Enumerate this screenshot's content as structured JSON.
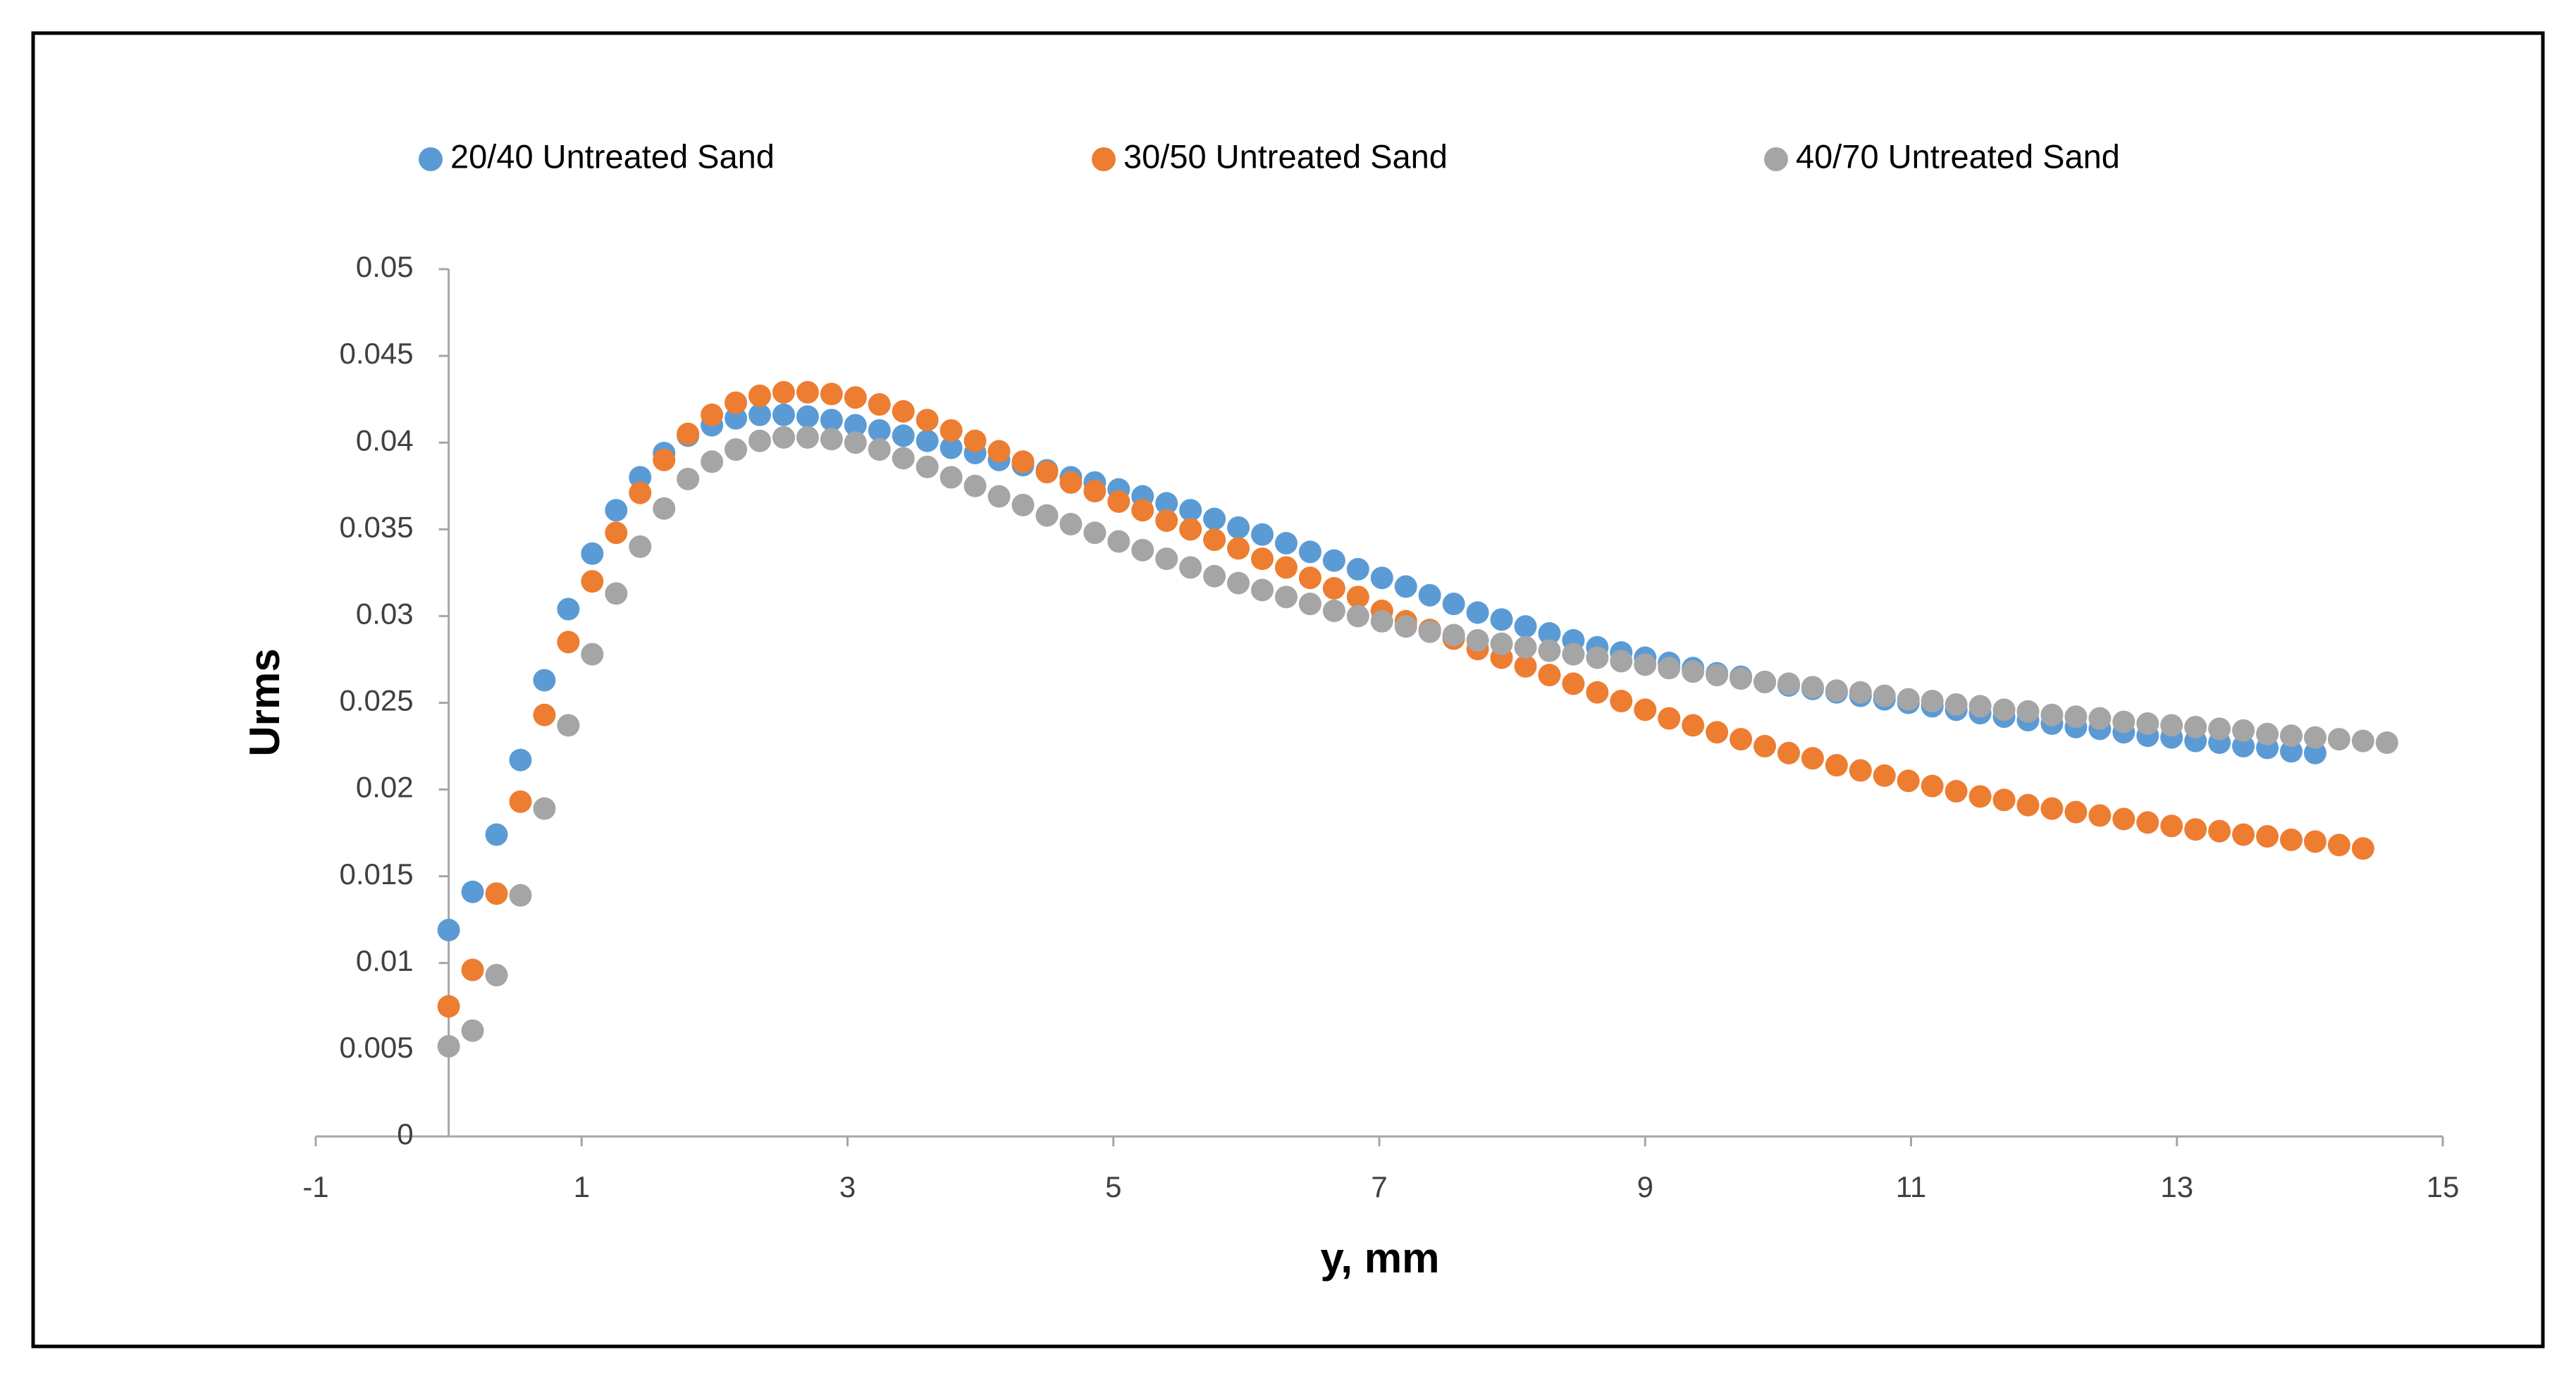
{
  "chart_data": {
    "type": "scatter",
    "x_label": "y, mm",
    "y_label": "Urms",
    "xlim": [
      -1,
      15
    ],
    "xticks": [
      -1,
      1,
      3,
      5,
      7,
      9,
      11,
      13,
      15
    ],
    "ylim": [
      0,
      0.05
    ],
    "yticks": [
      0,
      0.005,
      0.01,
      0.015,
      0.02,
      0.025,
      0.03,
      0.035,
      0.04,
      0.045,
      0.05
    ],
    "grid": false,
    "legend": "top",
    "series": [
      {
        "name": "20/40 Untreated Sand",
        "color": "#5b9bd5",
        "x": [
          0,
          0.18,
          0.36,
          0.54,
          0.72,
          0.9,
          1.08,
          1.26,
          1.44,
          1.62,
          1.8,
          1.98,
          2.16,
          2.34,
          2.52,
          2.7,
          2.88,
          3.06,
          3.24,
          3.42,
          3.6,
          3.78,
          3.96,
          4.14,
          4.32,
          4.5,
          4.68,
          4.86,
          5.04,
          5.22,
          5.4,
          5.58,
          5.76,
          5.94,
          6.12,
          6.3,
          6.48,
          6.66,
          6.84,
          7.02,
          7.2,
          7.38,
          7.56,
          7.74,
          7.92,
          8.1,
          8.28,
          8.46,
          8.64,
          8.82,
          9,
          9.18,
          9.36,
          9.54,
          9.72,
          9.9,
          10.08,
          10.26,
          10.44,
          10.62,
          10.8,
          10.98,
          11.16,
          11.34,
          11.52,
          11.7,
          11.88,
          12.06,
          12.24,
          12.42,
          12.6,
          12.78,
          12.96,
          13.14,
          13.32,
          13.5,
          13.68,
          13.86,
          14.04
        ],
        "values": [
          0.0119,
          0.0141,
          0.0174,
          0.0217,
          0.0263,
          0.0304,
          0.0336,
          0.0361,
          0.038,
          0.0394,
          0.0404,
          0.041,
          0.0414,
          0.0416,
          0.0416,
          0.0415,
          0.0413,
          0.041,
          0.0407,
          0.0404,
          0.0401,
          0.0397,
          0.0394,
          0.039,
          0.0387,
          0.0384,
          0.038,
          0.0377,
          0.0373,
          0.0369,
          0.0365,
          0.0361,
          0.0356,
          0.0351,
          0.0347,
          0.0342,
          0.0337,
          0.0332,
          0.0327,
          0.0322,
          0.0317,
          0.0312,
          0.0307,
          0.0302,
          0.0298,
          0.0294,
          0.029,
          0.0286,
          0.0282,
          0.0279,
          0.0276,
          0.0273,
          0.027,
          0.0267,
          0.0265,
          0.0262,
          0.026,
          0.0258,
          0.0256,
          0.0254,
          0.0252,
          0.025,
          0.0248,
          0.0246,
          0.0244,
          0.0242,
          0.024,
          0.0238,
          0.0236,
          0.0235,
          0.0233,
          0.0231,
          0.023,
          0.0228,
          0.0227,
          0.0225,
          0.0224,
          0.0222,
          0.0221
        ]
      },
      {
        "name": "30/50 Untreated Sand",
        "color": "#ed7d31",
        "x": [
          0,
          0.18,
          0.36,
          0.54,
          0.72,
          0.9,
          1.08,
          1.26,
          1.44,
          1.62,
          1.8,
          1.98,
          2.16,
          2.34,
          2.52,
          2.7,
          2.88,
          3.06,
          3.24,
          3.42,
          3.6,
          3.78,
          3.96,
          4.14,
          4.32,
          4.5,
          4.68,
          4.86,
          5.04,
          5.22,
          5.4,
          5.58,
          5.76,
          5.94,
          6.12,
          6.3,
          6.48,
          6.66,
          6.84,
          7.02,
          7.2,
          7.38,
          7.56,
          7.74,
          7.92,
          8.1,
          8.28,
          8.46,
          8.64,
          8.82,
          9,
          9.18,
          9.36,
          9.54,
          9.72,
          9.9,
          10.08,
          10.26,
          10.44,
          10.62,
          10.8,
          10.98,
          11.16,
          11.34,
          11.52,
          11.7,
          11.88,
          12.06,
          12.24,
          12.42,
          12.6,
          12.78,
          12.96,
          13.14,
          13.32,
          13.5,
          13.68,
          13.86,
          14.04,
          14.22,
          14.4
        ],
        "values": [
          0.0075,
          0.0096,
          0.014,
          0.0193,
          0.0243,
          0.0285,
          0.032,
          0.0348,
          0.0371,
          0.039,
          0.0405,
          0.0416,
          0.0423,
          0.0427,
          0.0429,
          0.0429,
          0.0428,
          0.0426,
          0.0422,
          0.0418,
          0.0413,
          0.0407,
          0.0401,
          0.0395,
          0.0389,
          0.0383,
          0.0377,
          0.0372,
          0.0366,
          0.0361,
          0.0355,
          0.035,
          0.0344,
          0.0339,
          0.0333,
          0.0328,
          0.0322,
          0.0316,
          0.0311,
          0.0303,
          0.0297,
          0.0292,
          0.0287,
          0.0281,
          0.0276,
          0.0271,
          0.0266,
          0.0261,
          0.0256,
          0.0251,
          0.0246,
          0.0241,
          0.0237,
          0.0233,
          0.0229,
          0.0225,
          0.0221,
          0.0218,
          0.0214,
          0.0211,
          0.0208,
          0.0205,
          0.0202,
          0.0199,
          0.0196,
          0.0194,
          0.0191,
          0.0189,
          0.0187,
          0.0185,
          0.0183,
          0.0181,
          0.0179,
          0.0177,
          0.0176,
          0.0174,
          0.0173,
          0.0171,
          0.017,
          0.0168,
          0.0166
        ]
      },
      {
        "name": "40/70 Untreated Sand",
        "color": "#a5a5a5",
        "x": [
          0,
          0.18,
          0.36,
          0.54,
          0.72,
          0.9,
          1.08,
          1.26,
          1.44,
          1.62,
          1.8,
          1.98,
          2.16,
          2.34,
          2.52,
          2.7,
          2.88,
          3.06,
          3.24,
          3.42,
          3.6,
          3.78,
          3.96,
          4.14,
          4.32,
          4.5,
          4.68,
          4.86,
          5.04,
          5.22,
          5.4,
          5.58,
          5.76,
          5.94,
          6.12,
          6.3,
          6.48,
          6.66,
          6.84,
          7.02,
          7.2,
          7.38,
          7.56,
          7.74,
          7.92,
          8.1,
          8.28,
          8.46,
          8.64,
          8.82,
          9,
          9.18,
          9.36,
          9.54,
          9.72,
          9.9,
          10.08,
          10.26,
          10.44,
          10.62,
          10.8,
          10.98,
          11.16,
          11.34,
          11.52,
          11.7,
          11.88,
          12.06,
          12.24,
          12.42,
          12.6,
          12.78,
          12.96,
          13.14,
          13.32,
          13.5,
          13.68,
          13.86,
          14.04,
          14.22,
          14.4,
          14.58
        ],
        "values": [
          0.0052,
          0.0061,
          0.0093,
          0.0139,
          0.0189,
          0.0237,
          0.0278,
          0.0313,
          0.034,
          0.0362,
          0.0379,
          0.0389,
          0.0396,
          0.0401,
          0.0403,
          0.0403,
          0.0402,
          0.04,
          0.0396,
          0.0391,
          0.0386,
          0.038,
          0.0375,
          0.0369,
          0.0364,
          0.0358,
          0.0353,
          0.0348,
          0.0343,
          0.0338,
          0.0333,
          0.0328,
          0.0323,
          0.0319,
          0.0315,
          0.0311,
          0.0307,
          0.0303,
          0.03,
          0.0297,
          0.0294,
          0.0291,
          0.0289,
          0.0286,
          0.0284,
          0.0282,
          0.028,
          0.0278,
          0.0276,
          0.0274,
          0.0272,
          0.027,
          0.0268,
          0.0266,
          0.0264,
          0.0262,
          0.0261,
          0.0259,
          0.0257,
          0.0256,
          0.0254,
          0.0252,
          0.0251,
          0.0249,
          0.0248,
          0.0246,
          0.0245,
          0.0243,
          0.0242,
          0.0241,
          0.0239,
          0.0238,
          0.0237,
          0.0236,
          0.0235,
          0.0234,
          0.0232,
          0.0231,
          0.023,
          0.0229,
          0.0228,
          0.0227
        ]
      }
    ]
  }
}
